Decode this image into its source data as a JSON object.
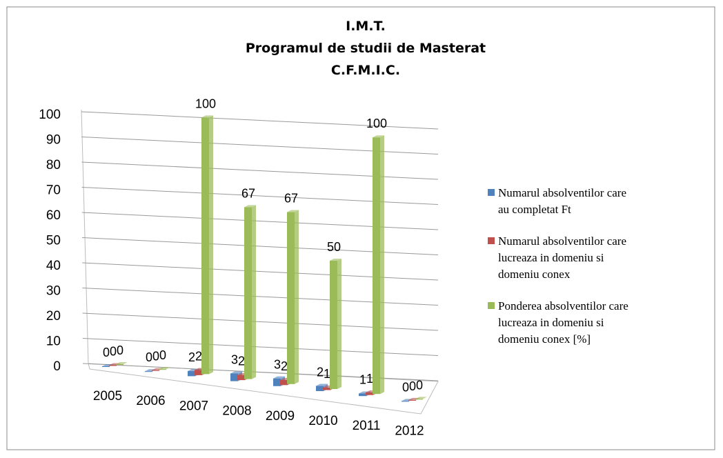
{
  "chart_data": {
    "type": "bar3d",
    "title": [
      "I.M.T.",
      "Programul de studii de Masterat",
      "C.F.M.I.C."
    ],
    "categories": [
      "2005",
      "2006",
      "2007",
      "2008",
      "2009",
      "2010",
      "2011",
      "2012"
    ],
    "series": [
      {
        "name": "Numarul absolventilor care au completat Ft",
        "color": "#4f81bd",
        "values": [
          0,
          0,
          2,
          3,
          3,
          2,
          1,
          0
        ]
      },
      {
        "name": "Numarul absolventilor care lucreaza in domeniu si domeniu conex",
        "color": "#c0504d",
        "values": [
          0,
          0,
          2,
          2,
          2,
          1,
          1,
          0
        ]
      },
      {
        "name": "Ponderea absolventilor care lucreaza in domeniu si domeniu conex [%]",
        "color": "#9bbb59",
        "values": [
          0,
          0,
          100,
          67,
          67,
          50,
          100,
          0
        ]
      }
    ],
    "ylim": [
      0,
      100
    ],
    "yticks": [
      0,
      10,
      20,
      30,
      40,
      50,
      60,
      70,
      80,
      90,
      100
    ],
    "grid": true,
    "legend": "right"
  }
}
